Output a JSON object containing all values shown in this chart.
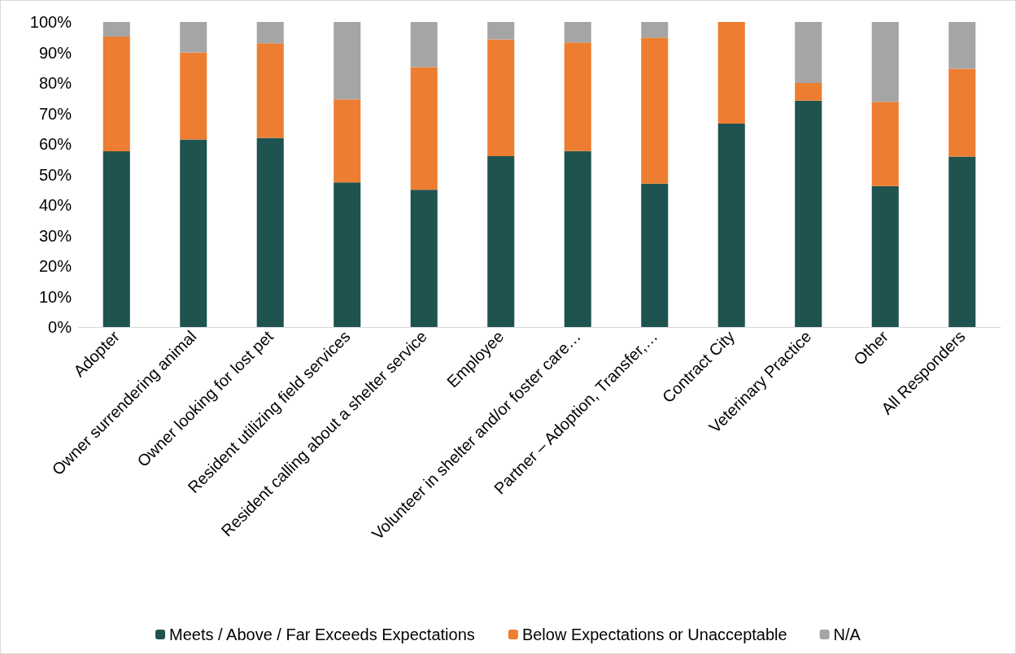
{
  "chart_data": {
    "type": "bar",
    "stacked": true,
    "legend": "bottom",
    "grid": false,
    "categories": [
      "Adopter",
      "Owner surrendering animal",
      "Owner looking for lost pet",
      "Resident utilizing field services",
      "Resident calling about a shelter service",
      "Employee",
      "Volunteer in shelter and/or foster care…",
      "Partner – Adoption, Transfer,…",
      "Contract City",
      "Veterinary Practice",
      "Other",
      "All Responders"
    ],
    "series": [
      {
        "name": "Meets / Above / Far Exceeds Expectations",
        "color": "#1e5350",
        "values": [
          57.6,
          61.5,
          62,
          47.4,
          45,
          56,
          57.7,
          47,
          66.7,
          74.2,
          46.2,
          55.9
        ]
      },
      {
        "name": "Below Expectations or Unacceptable",
        "color": "#ed7d31",
        "values": [
          37.6,
          28.5,
          31,
          27.2,
          40.2,
          38.3,
          35.6,
          47.9,
          33.3,
          5.8,
          27.6,
          28.8
        ]
      },
      {
        "name": "N/A",
        "color": "#a5a5a5",
        "values": [
          4.8,
          10,
          7,
          25.4,
          14.8,
          5.7,
          6.7,
          5.1,
          0,
          20,
          26.2,
          15.3
        ]
      }
    ],
    "ylim": [
      0,
      100
    ],
    "yticks": [
      {
        "value": 0,
        "label": "0%"
      },
      {
        "value": 10,
        "label": "10%"
      },
      {
        "value": 20,
        "label": "20%"
      },
      {
        "value": 30,
        "label": "30%"
      },
      {
        "value": 40,
        "label": "40%"
      },
      {
        "value": 50,
        "label": "50%"
      },
      {
        "value": 60,
        "label": "60%"
      },
      {
        "value": 70,
        "label": "70%"
      },
      {
        "value": 80,
        "label": "80%"
      },
      {
        "value": 90,
        "label": "90%"
      },
      {
        "value": 100,
        "label": "100%"
      }
    ]
  }
}
